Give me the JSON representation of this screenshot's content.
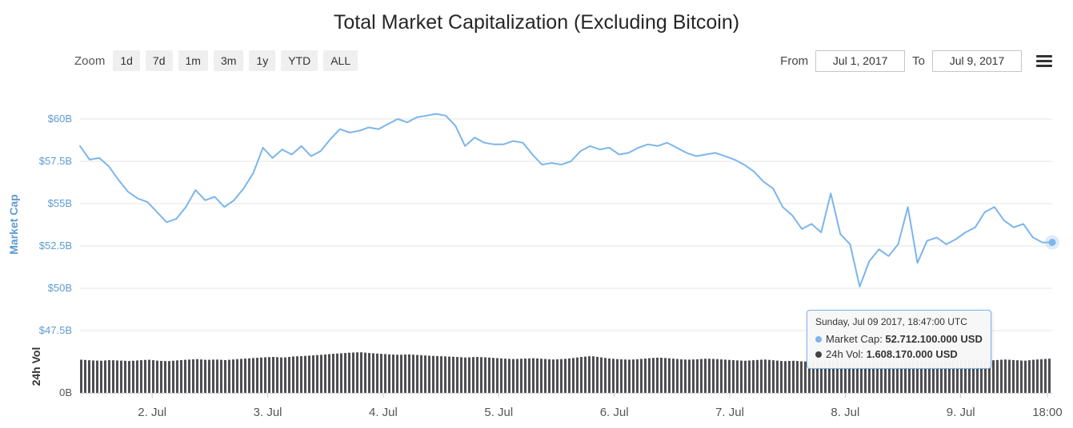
{
  "title": "Total Market Capitalization (Excluding Bitcoin)",
  "toolbar": {
    "zoom_label": "Zoom",
    "zoom_buttons": [
      "1d",
      "7d",
      "1m",
      "3m",
      "1y",
      "YTD",
      "ALL"
    ],
    "from_label": "From",
    "from_value": "Jul 1, 2017",
    "to_label": "To",
    "to_value": "Jul 9, 2017"
  },
  "tooltip": {
    "header": "Sunday, Jul 09 2017, 18:47:00 UTC",
    "rows": [
      {
        "label": "Market Cap",
        "value": "52.712.100.000 USD",
        "color": "#7cb5ec"
      },
      {
        "label": "24h Vol",
        "value": "1.608.170.000 USD",
        "color": "#434348"
      }
    ]
  },
  "colors": {
    "market_cap_line": "#7cb5ec",
    "volume_bar": "#4f4f52",
    "grid": "#e6e6e6",
    "y_axis_label": "#5f9bd1",
    "x_axis_label": "#555555",
    "axis_line": "#d0d0d0",
    "vol_axis_label": "#555555",
    "vol_axis_title": "#333333"
  },
  "chart_data": {
    "type": "line",
    "title": "Total Market Capitalization (Excluding Bitcoin)",
    "x_start": "2017-07-01 09:00 UTC",
    "x_end": "2017-07-09 18:47 UTC",
    "x_interval_hours": 2,
    "total_hours": 202,
    "x_ticks": [
      {
        "label": "2. Jul",
        "hour": 15
      },
      {
        "label": "3. Jul",
        "hour": 39
      },
      {
        "label": "4. Jul",
        "hour": 63
      },
      {
        "label": "5. Jul",
        "hour": 87
      },
      {
        "label": "6. Jul",
        "hour": 111
      },
      {
        "label": "7. Jul",
        "hour": 135
      },
      {
        "label": "8. Jul",
        "hour": 159
      },
      {
        "label": "9. Jul",
        "hour": 183
      },
      {
        "label": "18:00",
        "hour": 201
      }
    ],
    "y_axis": {
      "title": "Market Cap",
      "unit": "USD billions",
      "min": 46.25,
      "max": 61.75,
      "ticks": [
        {
          "label": "$60B",
          "value": 60
        },
        {
          "label": "$57.5B",
          "value": 57.5
        },
        {
          "label": "$55B",
          "value": 55
        },
        {
          "label": "$52.5B",
          "value": 52.5
        },
        {
          "label": "$50B",
          "value": 50
        },
        {
          "label": "$47.5B",
          "value": 47.5
        }
      ]
    },
    "y2_axis": {
      "title": "24h Vol",
      "unit": "USD billions",
      "min": 0,
      "max": 2.5,
      "ticks": [
        {
          "label": "0B",
          "value": 0
        }
      ]
    },
    "series": [
      {
        "name": "Market Cap",
        "type": "line",
        "color": "#7cb5ec",
        "unit": "USD billions",
        "last_point_label": "52.712.100.000 USD",
        "values": [
          58.4,
          57.6,
          57.7,
          57.2,
          56.4,
          55.7,
          55.3,
          55.1,
          54.5,
          53.9,
          54.1,
          54.8,
          55.8,
          55.2,
          55.4,
          54.8,
          55.2,
          55.9,
          56.8,
          58.3,
          57.7,
          58.2,
          57.9,
          58.4,
          57.8,
          58.1,
          58.8,
          59.4,
          59.2,
          59.3,
          59.5,
          59.4,
          59.7,
          60.0,
          59.8,
          60.1,
          60.2,
          60.3,
          60.2,
          59.6,
          58.4,
          58.9,
          58.6,
          58.5,
          58.5,
          58.7,
          58.6,
          57.9,
          57.3,
          57.4,
          57.3,
          57.5,
          58.1,
          58.4,
          58.2,
          58.3,
          57.9,
          58.0,
          58.3,
          58.5,
          58.4,
          58.6,
          58.3,
          58.0,
          57.8,
          57.9,
          58.0,
          57.8,
          57.6,
          57.3,
          56.9,
          56.3,
          55.9,
          54.8,
          54.3,
          53.5,
          53.8,
          53.3,
          55.6,
          53.2,
          52.6,
          50.1,
          51.6,
          52.3,
          51.9,
          52.6,
          54.8,
          51.5,
          52.8,
          53.0,
          52.6,
          52.9,
          53.3,
          53.6,
          54.5,
          54.8,
          54.0,
          53.6,
          53.8,
          53.0,
          52.7,
          52.7121
        ]
      },
      {
        "name": "24h Vol",
        "type": "bar",
        "color": "#4f4f52",
        "unit": "USD billions",
        "last_point_label": "1.608.170.000 USD",
        "values": [
          1.55,
          1.52,
          1.5,
          1.53,
          1.51,
          1.49,
          1.52,
          1.55,
          1.5,
          1.48,
          1.52,
          1.55,
          1.58,
          1.54,
          1.56,
          1.53,
          1.57,
          1.6,
          1.63,
          1.66,
          1.68,
          1.65,
          1.7,
          1.72,
          1.75,
          1.78,
          1.82,
          1.85,
          1.88,
          1.9,
          1.86,
          1.83,
          1.8,
          1.78,
          1.8,
          1.77,
          1.74,
          1.72,
          1.7,
          1.68,
          1.65,
          1.68,
          1.66,
          1.63,
          1.6,
          1.58,
          1.6,
          1.62,
          1.59,
          1.56,
          1.58,
          1.62,
          1.68,
          1.72,
          1.66,
          1.6,
          1.57,
          1.55,
          1.58,
          1.62,
          1.65,
          1.62,
          1.58,
          1.55,
          1.57,
          1.6,
          1.58,
          1.55,
          1.52,
          1.5,
          1.53,
          1.56,
          1.52,
          1.48,
          1.5,
          1.47,
          1.45,
          1.48,
          1.52,
          1.49,
          1.46,
          1.44,
          1.47,
          1.5,
          1.48,
          1.45,
          1.48,
          1.51,
          1.48,
          1.46,
          1.49,
          1.52,
          1.55,
          1.52,
          1.5,
          1.53,
          1.56,
          1.53,
          1.5,
          1.55,
          1.58,
          1.608
        ]
      }
    ],
    "legend": "none",
    "grid": "horizontal"
  }
}
